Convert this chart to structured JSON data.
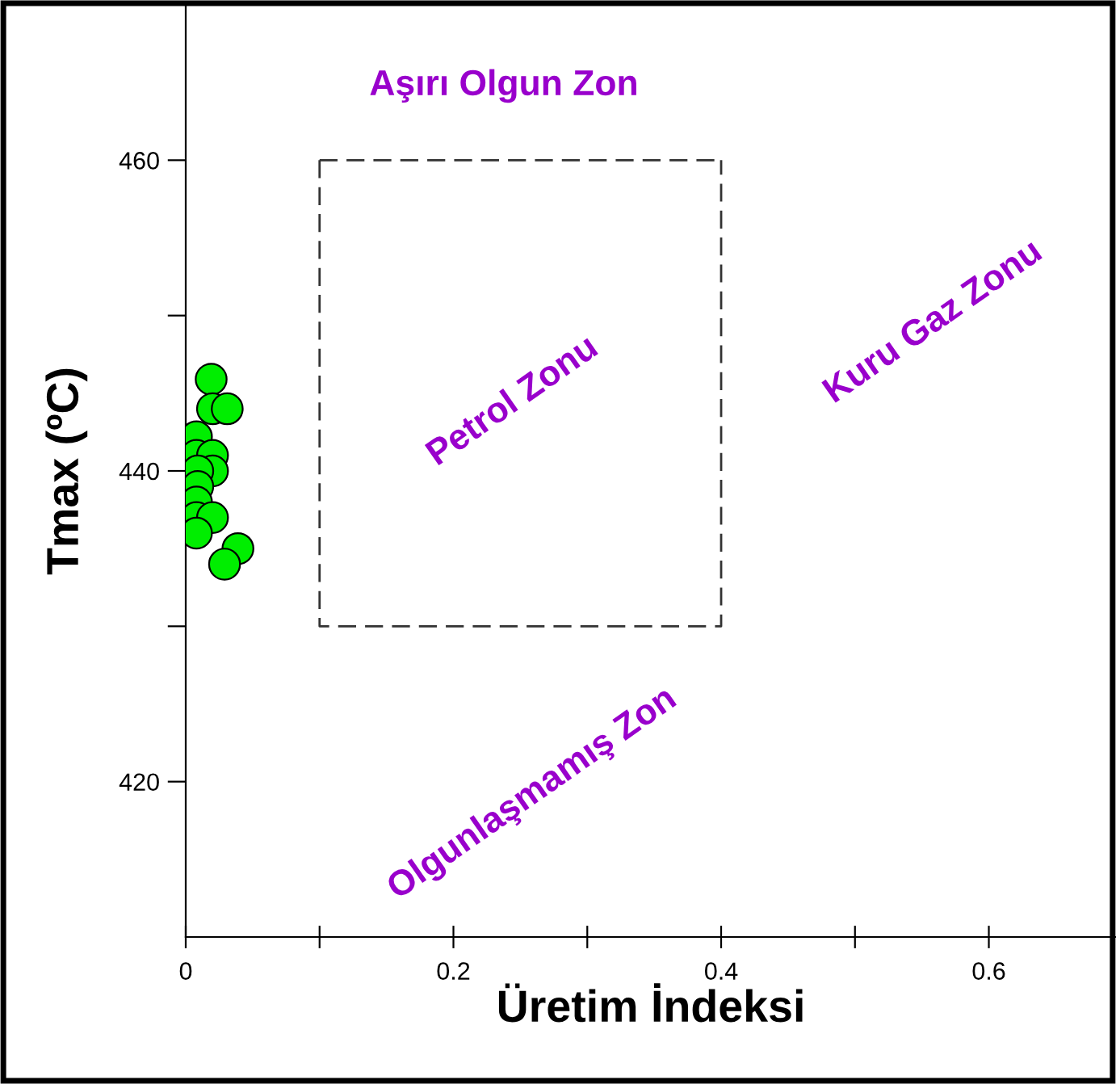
{
  "chart_data": {
    "type": "scatter",
    "xlabel": "Üretim İndeksi",
    "ylabel": "Tmax (ºC)",
    "xlim": [
      0,
      0.695
    ],
    "ylim": [
      410,
      470
    ],
    "xticks": [
      0,
      {
        "value": 0.1,
        "label": null
      },
      0.2,
      {
        "value": 0.3,
        "label": null
      },
      0.4,
      {
        "value": 0.5,
        "label": null
      },
      0.6
    ],
    "yticks": [
      420,
      {
        "value": 430,
        "label": null
      },
      440,
      {
        "value": 450,
        "label": null
      },
      460
    ],
    "grid": false,
    "legend": false,
    "marker": "circle",
    "series": [
      {
        "color": "#00ee00",
        "x": [
          0.019,
          0.02,
          0.031,
          0.008,
          0.008,
          0.02,
          0.02,
          0.009,
          0.009,
          0.008,
          0.008,
          0.02,
          0.008,
          0.039,
          0.029
        ],
        "values": [
          445.9,
          444,
          444,
          442.2,
          441,
          441,
          440,
          440,
          439,
          438,
          437,
          437,
          436,
          435,
          434
        ]
      },
      {
        "type": "line",
        "color": "#333333",
        "line_style": "dashed",
        "marker": "none",
        "x": [
          0.1,
          0.1,
          0.4,
          0.4
        ],
        "values": [
          460,
          430,
          430,
          460
        ]
      },
      {
        "type": "line",
        "color": "#333333",
        "line_style": "dashed",
        "marker": "none",
        "x": [
          0.1,
          0.4
        ],
        "values": [
          460,
          460
        ]
      }
    ],
    "annotations": [
      "Aşırı Olgun Zon",
      "Petrol Zonu",
      "Kuru Gaz Zonu",
      "Olgunlaşmamış Zon"
    ]
  }
}
